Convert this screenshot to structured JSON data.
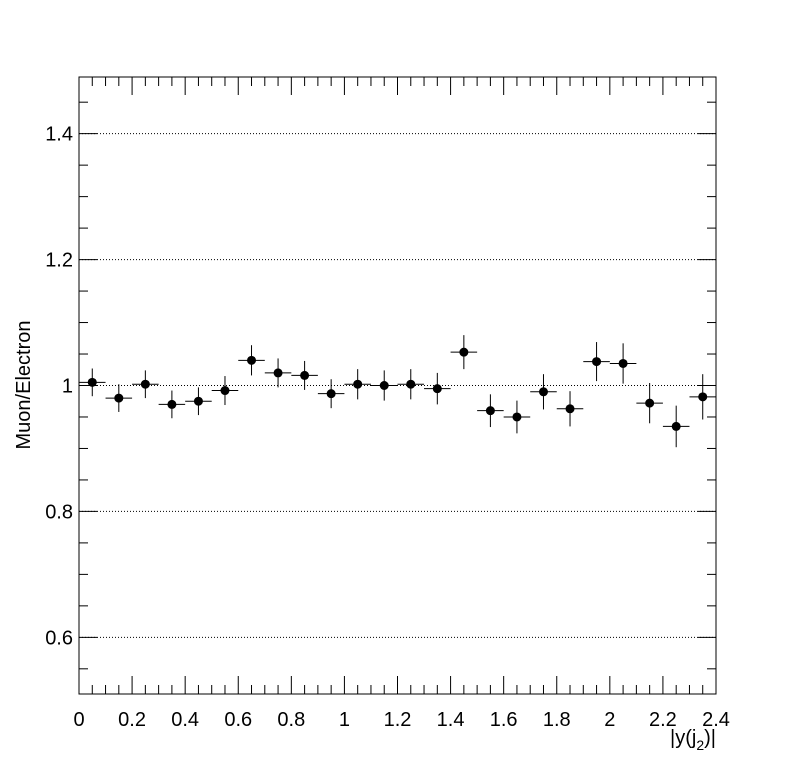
{
  "chart_data": {
    "type": "scatter",
    "title": "",
    "xlabel_main": "|y(j",
    "xlabel_sub": "2",
    "xlabel_tail": ")|",
    "ylabel": "Muon/Electron",
    "xlim": [
      0,
      2.4
    ],
    "ylim": [
      0.51,
      1.49
    ],
    "grid": "horizontal-dotted",
    "x_ticks": [
      {
        "value": 0,
        "label": "0"
      },
      {
        "value": 0.2,
        "label": "0.2"
      },
      {
        "value": 0.4,
        "label": "0.4"
      },
      {
        "value": 0.6,
        "label": "0.6"
      },
      {
        "value": 0.8,
        "label": "0.8"
      },
      {
        "value": 1.0,
        "label": "1"
      },
      {
        "value": 1.2,
        "label": "1.2"
      },
      {
        "value": 1.4,
        "label": "1.4"
      },
      {
        "value": 1.6,
        "label": "1.6"
      },
      {
        "value": 1.8,
        "label": "1.8"
      },
      {
        "value": 2.0,
        "label": "2"
      },
      {
        "value": 2.2,
        "label": "2.2"
      },
      {
        "value": 2.4,
        "label": "2.4"
      }
    ],
    "y_ticks": [
      {
        "value": 0.6,
        "label": "0.6"
      },
      {
        "value": 0.8,
        "label": "0.8"
      },
      {
        "value": 1.0,
        "label": "1"
      },
      {
        "value": 1.2,
        "label": "1.2"
      },
      {
        "value": 1.4,
        "label": "1.4"
      }
    ],
    "bin_width": 0.1,
    "points": [
      {
        "x": 0.05,
        "y": 1.005,
        "err": 0.022
      },
      {
        "x": 0.15,
        "y": 0.98,
        "err": 0.022
      },
      {
        "x": 0.25,
        "y": 1.002,
        "err": 0.022
      },
      {
        "x": 0.35,
        "y": 0.97,
        "err": 0.022
      },
      {
        "x": 0.45,
        "y": 0.975,
        "err": 0.022
      },
      {
        "x": 0.55,
        "y": 0.992,
        "err": 0.023
      },
      {
        "x": 0.65,
        "y": 1.04,
        "err": 0.024
      },
      {
        "x": 0.75,
        "y": 1.02,
        "err": 0.023
      },
      {
        "x": 0.85,
        "y": 1.016,
        "err": 0.023
      },
      {
        "x": 0.95,
        "y": 0.987,
        "err": 0.023
      },
      {
        "x": 1.05,
        "y": 1.002,
        "err": 0.024
      },
      {
        "x": 1.15,
        "y": 1.0,
        "err": 0.024
      },
      {
        "x": 1.25,
        "y": 1.002,
        "err": 0.024
      },
      {
        "x": 1.35,
        "y": 0.995,
        "err": 0.025
      },
      {
        "x": 1.45,
        "y": 1.053,
        "err": 0.027
      },
      {
        "x": 1.55,
        "y": 0.96,
        "err": 0.026
      },
      {
        "x": 1.65,
        "y": 0.95,
        "err": 0.026
      },
      {
        "x": 1.75,
        "y": 0.99,
        "err": 0.028
      },
      {
        "x": 1.85,
        "y": 0.963,
        "err": 0.028
      },
      {
        "x": 1.95,
        "y": 1.038,
        "err": 0.031
      },
      {
        "x": 2.05,
        "y": 1.035,
        "err": 0.032
      },
      {
        "x": 2.15,
        "y": 0.972,
        "err": 0.032
      },
      {
        "x": 2.25,
        "y": 0.935,
        "err": 0.033
      },
      {
        "x": 2.35,
        "y": 0.982,
        "err": 0.036
      }
    ]
  }
}
